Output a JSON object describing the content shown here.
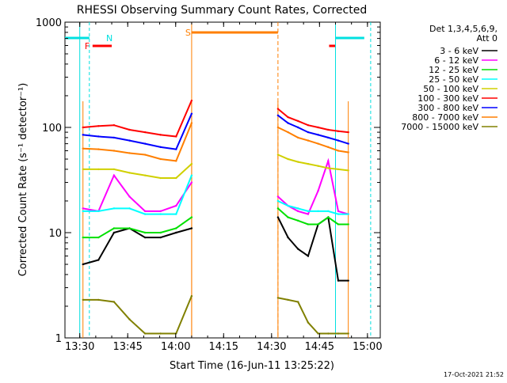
{
  "chart_data": {
    "type": "line",
    "title": "RHESSI Observing Summary Count Rates, Corrected",
    "xlabel": "Start Time (16-Jun-11 13:25:22)",
    "ylabel": "Corrected Count Rate (s⁻¹ detector⁻¹)",
    "yscale": "log",
    "ylim": [
      1,
      1000
    ],
    "xlim": [
      "13:25:22",
      "15:04"
    ],
    "x_ticks": [
      "13:30",
      "13:45",
      "14:00",
      "14:15",
      "14:30",
      "14:45",
      "15:00"
    ],
    "y_ticks": [
      "1",
      "10",
      "100",
      "1000"
    ],
    "legend_title": [
      "Det 1,3,4,5,6,9,",
      "Att 0"
    ],
    "legend_position": "right",
    "footer": "17-Oct-2021 21:52",
    "flags": [
      {
        "label": "N",
        "color": "#00e0e0",
        "segments": [
          [
            "13:25:22",
            "13:33"
          ],
          [
            "14:50",
            "14:59"
          ]
        ]
      },
      {
        "label": "F",
        "color": "#ff0000",
        "segments": [
          [
            "13:34",
            "13:40"
          ],
          [
            "14:48",
            "14:50"
          ]
        ]
      },
      {
        "label": "S",
        "color": "#ff7f00",
        "segments": [
          [
            "14:05",
            "14:32"
          ]
        ]
      }
    ],
    "night_boundaries": [
      "13:30",
      "13:33",
      "14:50",
      "15:01"
    ],
    "data_gaps": [
      "14:05",
      "14:32"
    ],
    "segments": [
      [
        "13:31",
        "14:05"
      ],
      [
        "14:32",
        "14:54"
      ]
    ],
    "series": [
      {
        "name": "3 - 6 keV",
        "color": "#000000",
        "values": [
          [
            5,
            5.5,
            10,
            11,
            9,
            9,
            10,
            11
          ],
          [
            14,
            9,
            7,
            6,
            12,
            14,
            3.5,
            3.5
          ]
        ]
      },
      {
        "name": "6 - 12 keV",
        "color": "#ff00ff",
        "values": [
          [
            17,
            16,
            35,
            22,
            16,
            16,
            18,
            30
          ],
          [
            22,
            18,
            16,
            15,
            25,
            48,
            16,
            15
          ]
        ]
      },
      {
        "name": "12 - 25 keV",
        "color": "#00e000",
        "values": [
          [
            9,
            9,
            11,
            11,
            10,
            10,
            11,
            14
          ],
          [
            17,
            14,
            13,
            12,
            12,
            14,
            12,
            12
          ]
        ]
      },
      {
        "name": "25 - 50 keV",
        "color": "#00ffff",
        "values": [
          [
            16,
            16,
            17,
            17,
            15,
            15,
            15,
            35
          ],
          [
            20,
            18,
            17,
            16,
            16,
            16,
            15,
            15
          ]
        ]
      },
      {
        "name": "50 - 100 keV",
        "color": "#d0d000",
        "values": [
          [
            40,
            40,
            40,
            37,
            35,
            33,
            33,
            45
          ],
          [
            55,
            50,
            47,
            45,
            43,
            41,
            40,
            39
          ]
        ]
      },
      {
        "name": "100 - 300 keV",
        "color": "#ff0000",
        "values": [
          [
            100,
            103,
            105,
            95,
            90,
            85,
            82,
            180
          ],
          [
            150,
            125,
            115,
            105,
            100,
            95,
            92,
            90
          ]
        ]
      },
      {
        "name": "300 - 800 keV",
        "color": "#0000ff",
        "values": [
          [
            85,
            82,
            80,
            75,
            70,
            65,
            62,
            135
          ],
          [
            130,
            110,
            100,
            90,
            85,
            80,
            75,
            70
          ]
        ]
      },
      {
        "name": "800 - 7000 keV",
        "color": "#ff7f00",
        "values": [
          [
            63,
            62,
            60,
            57,
            55,
            50,
            48,
            110
          ],
          [
            100,
            90,
            80,
            75,
            70,
            65,
            60,
            58
          ]
        ]
      },
      {
        "name": "7000 - 15000 keV",
        "color": "#808000",
        "values": [
          [
            2.3,
            2.3,
            2.2,
            1.5,
            1.1,
            1.1,
            1.1,
            2.5
          ],
          [
            2.4,
            2.3,
            2.2,
            1.4,
            1.1,
            1.1,
            1.1,
            1.1
          ]
        ]
      }
    ]
  }
}
